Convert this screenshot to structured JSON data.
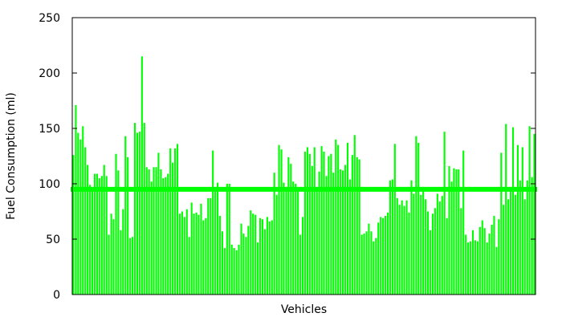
{
  "chart_data": {
    "type": "bar",
    "title": "",
    "xlabel": "Vehicles",
    "ylabel": "Fuel Consumption (ml)",
    "ylim": [
      0,
      250
    ],
    "yticks": [
      0,
      50,
      100,
      150,
      200,
      250
    ],
    "ytick_labels": [
      "0",
      "50",
      "100",
      "150",
      "200",
      "250"
    ],
    "grid": false,
    "legend": "none",
    "bar_color": "#00ff00",
    "reference_line": {
      "value": 95,
      "color": "#00ff00"
    },
    "values": [
      126,
      171,
      146,
      140,
      152,
      133,
      117,
      99,
      97,
      109,
      109,
      105,
      107,
      117,
      107,
      54,
      73,
      68,
      127,
      112,
      58,
      77,
      143,
      124,
      51,
      52,
      155,
      146,
      147,
      215,
      155,
      115,
      113,
      102,
      115,
      115,
      128,
      113,
      105,
      106,
      109,
      132,
      119,
      132,
      136,
      73,
      75,
      70,
      77,
      52,
      83,
      73,
      74,
      72,
      82,
      67,
      69,
      87,
      87,
      130,
      93,
      101,
      71,
      57,
      42,
      100,
      100,
      45,
      42,
      40,
      45,
      64,
      55,
      52,
      62,
      76,
      73,
      72,
      47,
      69,
      68,
      59,
      70,
      66,
      67,
      110,
      90,
      135,
      131,
      101,
      94,
      124,
      118,
      102,
      100,
      94,
      54,
      70,
      129,
      133,
      127,
      116,
      133,
      97,
      111,
      134,
      129,
      107,
      125,
      127,
      110,
      140,
      135,
      113,
      112,
      117,
      137,
      104,
      126,
      144,
      124,
      122,
      54,
      55,
      57,
      64,
      57,
      48,
      51,
      65,
      70,
      69,
      71,
      74,
      103,
      104,
      136,
      87,
      81,
      85,
      80,
      85,
      74,
      103,
      91,
      143,
      137,
      90,
      96,
      86,
      75,
      58,
      73,
      78,
      91,
      84,
      89,
      147,
      69,
      116,
      102,
      114,
      113,
      113,
      78,
      130,
      54,
      47,
      48,
      58,
      49,
      48,
      61,
      67,
      60,
      47,
      55,
      63,
      71,
      43,
      68,
      128,
      81,
      154,
      86,
      95,
      151,
      90,
      135,
      103,
      133,
      86,
      103,
      152,
      106,
      145
    ]
  }
}
